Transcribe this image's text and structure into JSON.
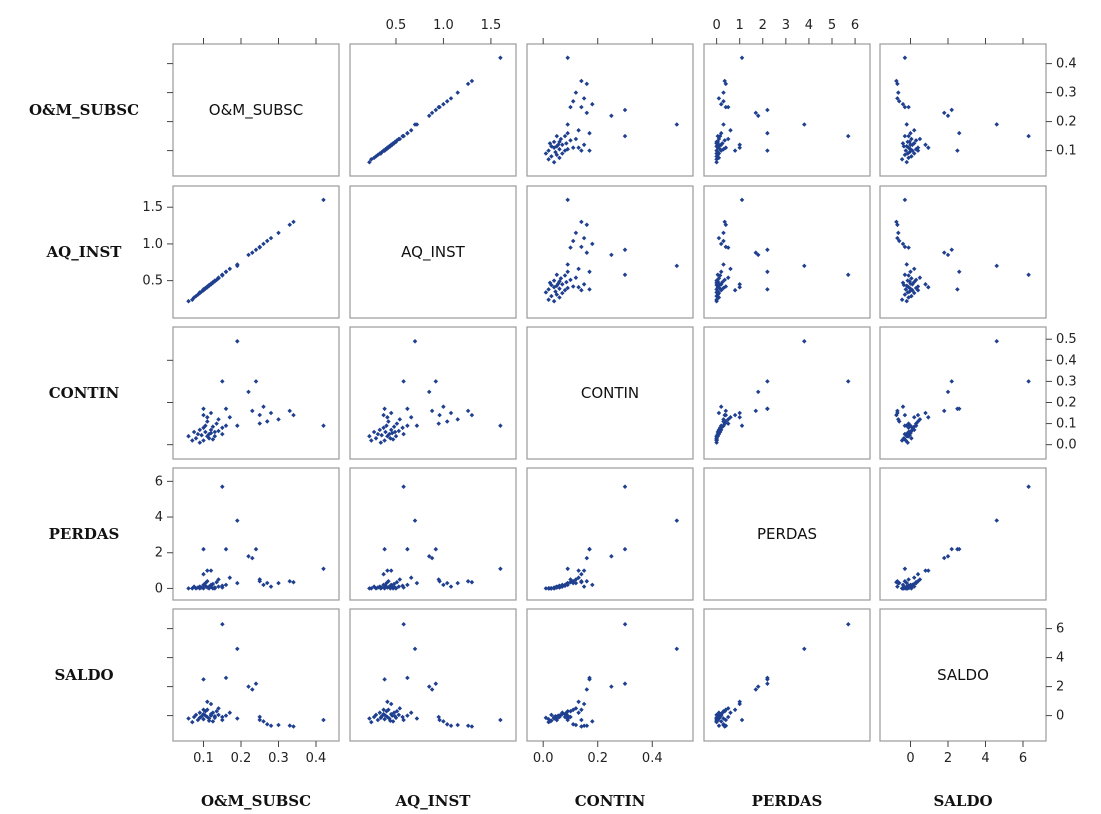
{
  "chart_data": {
    "type": "scatter-matrix",
    "marker_color": "#1f3f8f",
    "border_color": "#9a9a9a",
    "variables": [
      {
        "name": "O&M_SUBSC",
        "range": [
          0.04,
          0.44
        ],
        "ticks": [
          0.1,
          0.2,
          0.3,
          0.4
        ],
        "tick_labels": [
          "0.1",
          "0.2",
          "0.3",
          "0.4"
        ]
      },
      {
        "name": "AQ_INST",
        "range": [
          0.1,
          1.68
        ],
        "ticks": [
          0.5,
          1.0,
          1.5
        ],
        "tick_labels": [
          "0.5",
          "1.0",
          "1.5"
        ]
      },
      {
        "name": "CONTIN",
        "range": [
          -0.03,
          0.52
        ],
        "ticks": [
          0.0,
          0.2,
          0.4
        ],
        "tick_labels": [
          "0.0",
          "0.2",
          "0.4"
        ],
        "right_ticks": [
          0.0,
          0.1,
          0.2,
          0.3,
          0.4,
          0.5
        ],
        "right_tick_labels": [
          "0.0",
          "0.1",
          "0.2",
          "0.3",
          "0.4",
          "0.5"
        ]
      },
      {
        "name": "PERDAS",
        "range": [
          -0.2,
          6.3
        ],
        "ticks": [
          0,
          1,
          2,
          3,
          4,
          5,
          6
        ],
        "tick_labels": [
          "0",
          "1",
          "2",
          "3",
          "4",
          "5",
          "6"
        ],
        "left_ticks": [
          0,
          2,
          4,
          6
        ],
        "left_tick_labels": [
          "0",
          "2",
          "4",
          "6"
        ]
      },
      {
        "name": "SALDO",
        "range": [
          -1.2,
          6.8
        ],
        "ticks": [
          0,
          2,
          4,
          6
        ],
        "tick_labels": [
          "0",
          "2",
          "4",
          "6"
        ]
      }
    ],
    "observations": [
      [
        0.06,
        0.22,
        0.04,
        0.0,
        -0.2
      ],
      [
        0.07,
        0.24,
        0.02,
        0.0,
        -0.45
      ],
      [
        0.075,
        0.27,
        0.06,
        0.1,
        -0.1
      ],
      [
        0.08,
        0.29,
        0.03,
        0.0,
        0.05
      ],
      [
        0.085,
        0.31,
        0.05,
        0.05,
        -0.3
      ],
      [
        0.09,
        0.33,
        0.07,
        0.1,
        0.2
      ],
      [
        0.09,
        0.34,
        0.01,
        0.0,
        -0.15
      ],
      [
        0.095,
        0.35,
        0.045,
        0.05,
        -0.05
      ],
      [
        0.1,
        0.37,
        0.08,
        0.2,
        0.1
      ],
      [
        0.1,
        0.38,
        0.02,
        0.0,
        -0.25
      ],
      [
        0.105,
        0.39,
        0.06,
        0.15,
        0.0
      ],
      [
        0.105,
        0.4,
        0.09,
        0.3,
        0.3
      ],
      [
        0.11,
        0.41,
        0.04,
        0.05,
        -0.1
      ],
      [
        0.11,
        0.42,
        0.11,
        0.4,
        0.4
      ],
      [
        0.115,
        0.43,
        0.05,
        0.1,
        -0.2
      ],
      [
        0.115,
        0.44,
        0.03,
        0.0,
        -0.35
      ],
      [
        0.12,
        0.45,
        0.07,
        0.2,
        0.1
      ],
      [
        0.12,
        0.46,
        0.055,
        0.1,
        0.0
      ],
      [
        0.125,
        0.47,
        0.025,
        0.0,
        -0.4
      ],
      [
        0.125,
        0.48,
        0.085,
        0.25,
        0.2
      ],
      [
        0.13,
        0.49,
        0.06,
        0.05,
        -0.05
      ],
      [
        0.13,
        0.5,
        0.04,
        0.0,
        -0.15
      ],
      [
        0.135,
        0.51,
        0.1,
        0.35,
        0.3
      ],
      [
        0.14,
        0.53,
        0.065,
        0.1,
        0.05
      ],
      [
        0.14,
        0.54,
        0.12,
        0.5,
        0.5
      ],
      [
        0.15,
        0.57,
        0.08,
        0.15,
        -0.1
      ],
      [
        0.15,
        0.58,
        0.05,
        0.05,
        -0.3
      ],
      [
        0.16,
        0.62,
        0.09,
        0.2,
        0.0
      ],
      [
        0.17,
        0.66,
        0.13,
        0.6,
        0.2
      ],
      [
        0.1,
        0.37,
        0.14,
        0.8,
        0.4
      ],
      [
        0.11,
        0.41,
        0.13,
        1.0,
        0.95
      ],
      [
        0.12,
        0.45,
        0.15,
        1.0,
        0.8
      ],
      [
        0.15,
        0.58,
        0.3,
        5.7,
        6.3
      ],
      [
        0.19,
        0.7,
        0.49,
        3.8,
        4.6
      ],
      [
        0.1,
        0.38,
        0.17,
        2.2,
        2.5
      ],
      [
        0.16,
        0.62,
        0.17,
        2.2,
        2.6
      ],
      [
        0.19,
        0.72,
        0.09,
        0.3,
        -0.2
      ],
      [
        0.22,
        0.85,
        0.25,
        1.8,
        2.0
      ],
      [
        0.23,
        0.88,
        0.16,
        1.7,
        1.8
      ],
      [
        0.24,
        0.92,
        0.3,
        2.2,
        2.2
      ],
      [
        0.25,
        0.96,
        0.14,
        0.4,
        -0.3
      ],
      [
        0.26,
        1.0,
        0.18,
        0.2,
        -0.4
      ],
      [
        0.27,
        1.04,
        0.11,
        0.3,
        -0.6
      ],
      [
        0.28,
        1.08,
        0.15,
        0.1,
        -0.7
      ],
      [
        0.25,
        0.95,
        0.1,
        0.5,
        -0.1
      ],
      [
        0.3,
        1.15,
        0.12,
        0.3,
        -0.65
      ],
      [
        0.33,
        1.26,
        0.16,
        0.4,
        -0.7
      ],
      [
        0.34,
        1.3,
        0.14,
        0.35,
        -0.75
      ],
      [
        0.42,
        1.6,
        0.09,
        1.1,
        -0.3
      ]
    ]
  }
}
